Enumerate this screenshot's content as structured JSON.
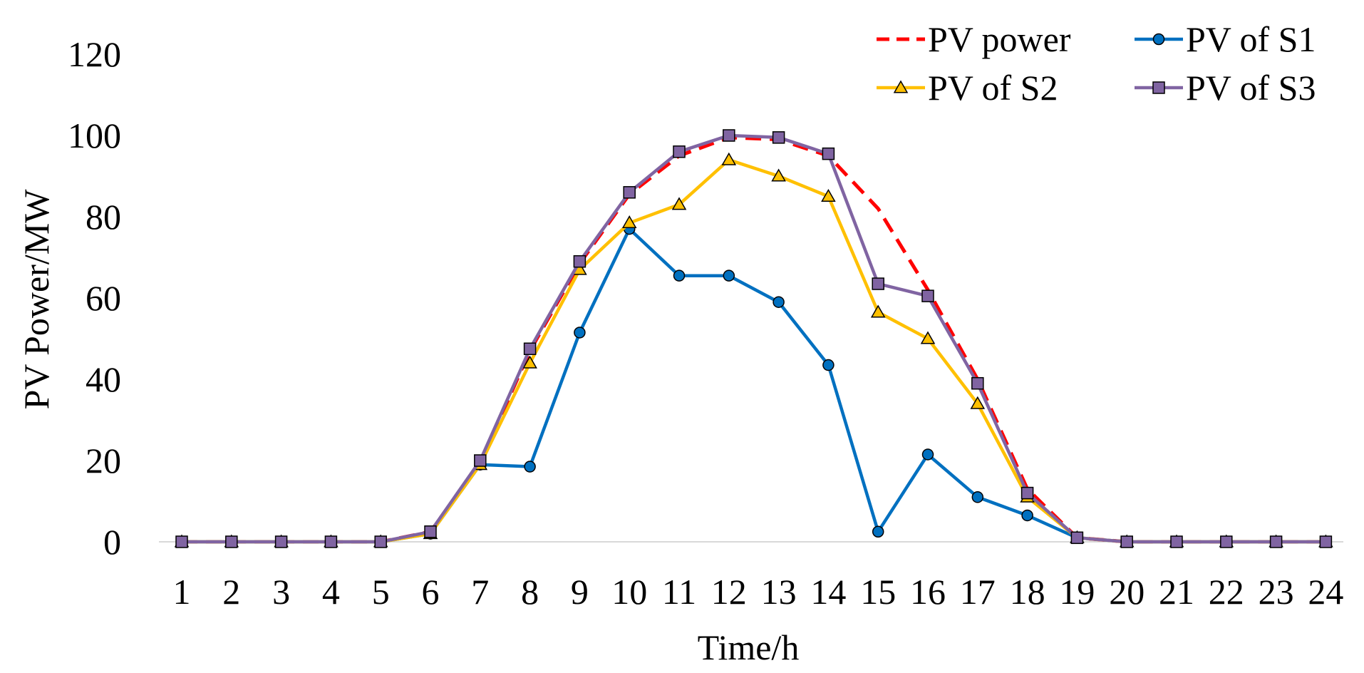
{
  "chart_data": {
    "type": "line",
    "title": "",
    "xlabel": "Time/h",
    "ylabel": "PV Power/MW",
    "categories": [
      "1",
      "2",
      "3",
      "4",
      "5",
      "6",
      "7",
      "8",
      "9",
      "10",
      "11",
      "12",
      "13",
      "14",
      "15",
      "16",
      "17",
      "18",
      "19",
      "20",
      "21",
      "22",
      "23",
      "24"
    ],
    "ylim": [
      0,
      120
    ],
    "yticks": [
      "0",
      "20",
      "40",
      "60",
      "80",
      "100",
      "120"
    ],
    "grid": false,
    "legend_position": "top-right",
    "series": [
      {
        "name": "PV power",
        "color": "#ff0000",
        "style": "dashed",
        "marker": "none",
        "values": [
          0,
          0,
          0,
          0,
          0,
          2.5,
          19.5,
          47,
          68.5,
          85.5,
          95,
          99.5,
          99,
          95,
          82,
          62,
          40,
          13,
          1,
          0,
          0,
          0,
          0,
          0
        ]
      },
      {
        "name": "PV of S1",
        "color": "#0070c0",
        "style": "solid",
        "marker": "circle",
        "values": [
          0,
          0,
          0,
          0,
          0,
          2,
          19,
          18.5,
          51.5,
          77,
          65.5,
          65.5,
          59,
          43.5,
          2.5,
          21.5,
          11,
          6.5,
          1,
          0,
          0,
          0,
          0,
          0
        ]
      },
      {
        "name": "PV of S2",
        "color": "#ffc000",
        "style": "solid",
        "marker": "triangle",
        "values": [
          0,
          0,
          0,
          0,
          0,
          2,
          19,
          44,
          67,
          78.5,
          83,
          94,
          90,
          85,
          56.5,
          50,
          34,
          11,
          1,
          0,
          0,
          0,
          0,
          0
        ]
      },
      {
        "name": "PV of S3",
        "color": "#8064a2",
        "style": "solid",
        "marker": "square",
        "values": [
          0,
          0,
          0,
          0,
          0,
          2.5,
          20,
          47.5,
          69,
          86,
          96,
          100,
          99.5,
          95.5,
          63.5,
          60.5,
          39,
          12,
          1,
          0,
          0,
          0,
          0,
          0
        ]
      }
    ]
  }
}
